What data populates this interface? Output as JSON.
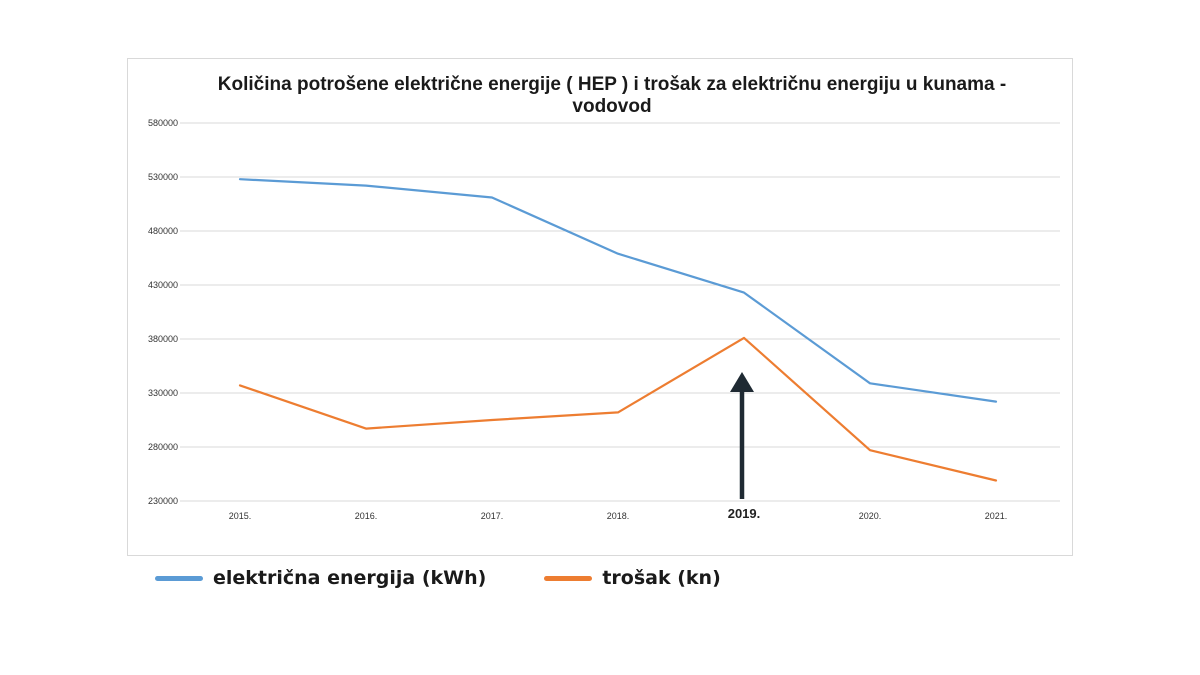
{
  "chart_data": {
    "type": "line",
    "title_lines": [
      "Količina potrošene električne energije ( HEP ) i trošak za električnu energiju u kunama -",
      "vodovod"
    ],
    "categories": [
      "2015.",
      "2016.",
      "2017.",
      "2018.",
      "2019.",
      "2020.",
      "2021."
    ],
    "highlighted_category": "2019.",
    "series": [
      {
        "name": "električna energija (kWh)",
        "color": "#5b9bd5",
        "values": [
          528000,
          522000,
          511000,
          459000,
          423000,
          339000,
          322000
        ]
      },
      {
        "name": "trošak (kn)",
        "color": "#ed7d31",
        "values": [
          337000,
          297000,
          305000,
          312000,
          381000,
          277000,
          249000
        ]
      }
    ],
    "ylim": [
      230000,
      580000
    ],
    "yticks": [
      580000,
      530000,
      480000,
      430000,
      380000,
      330000,
      280000,
      230000
    ],
    "grid": true,
    "legend_position": "bottom-left",
    "annotation": {
      "type": "arrow",
      "category": "2019.",
      "color": "#1f2a33"
    }
  }
}
